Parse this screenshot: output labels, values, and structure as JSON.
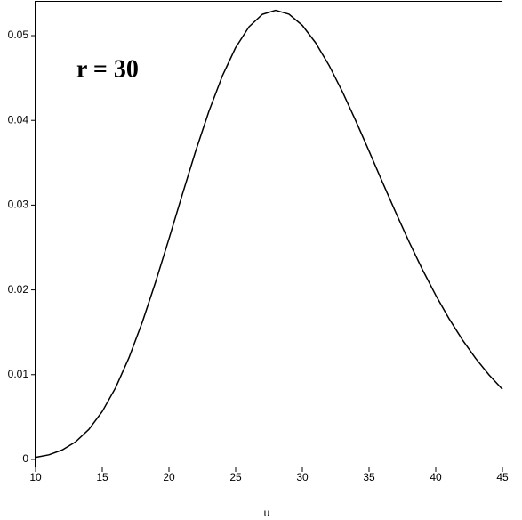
{
  "chart_data": {
    "type": "line",
    "annotation": "r = 30",
    "xlabel": "u",
    "x": [
      10,
      11,
      12,
      13,
      14,
      15,
      16,
      17,
      18,
      19,
      20,
      21,
      22,
      23,
      24,
      25,
      26,
      27,
      28,
      29,
      30,
      31,
      32,
      33,
      34,
      35,
      36,
      37,
      38,
      39,
      40,
      41,
      42,
      43,
      44,
      45
    ],
    "values": [
      0.00024,
      0.00054,
      0.00111,
      0.00207,
      0.00355,
      0.00565,
      0.00846,
      0.01199,
      0.01619,
      0.02094,
      0.02603,
      0.03126,
      0.03637,
      0.0411,
      0.04524,
      0.0486,
      0.05104,
      0.05251,
      0.05299,
      0.05253,
      0.05121,
      0.04915,
      0.0465,
      0.04339,
      0.03997,
      0.03638,
      0.03273,
      0.02914,
      0.02567,
      0.0224,
      0.01937,
      0.0166,
      0.01411,
      0.0119,
      0.00996,
      0.00827
    ],
    "color": "#000000",
    "xlim": [
      10,
      45
    ],
    "ylim": [
      -0.00095,
      0.0541
    ],
    "xticks": [
      10,
      15,
      20,
      25,
      30,
      35,
      40,
      45
    ],
    "yticks": [
      0,
      0.01,
      0.02,
      0.03,
      0.04,
      0.05
    ]
  }
}
